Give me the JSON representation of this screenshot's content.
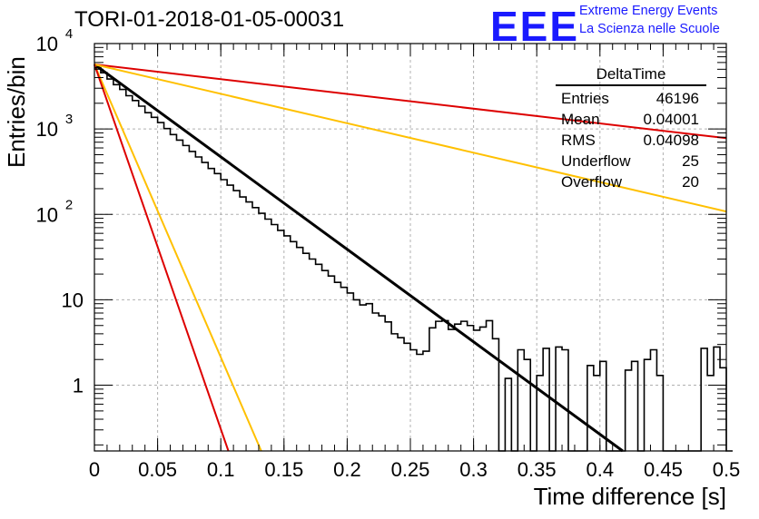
{
  "header": {
    "title": "TORI-01-2018-01-05-00031",
    "logo_text": "EEE",
    "logo_line1": "Extreme Energy Events",
    "logo_line2": "La Scienza nelle Scuole"
  },
  "stats_box": {
    "name": "DeltaTime",
    "rows": [
      {
        "label": "Entries",
        "value": "46196"
      },
      {
        "label": "Mean",
        "value": "0.04001"
      },
      {
        "label": "RMS",
        "value": "0.04098"
      },
      {
        "label": "Underflow",
        "value": "25"
      },
      {
        "label": "Overflow",
        "value": "20"
      }
    ]
  },
  "colors": {
    "histogram": "#000000",
    "fit": "#000000",
    "red": "#dd0000",
    "orange": "#ffc000",
    "grid": "#b0b0b0"
  },
  "chart_data": {
    "type": "line",
    "xlabel": "Time difference [s]",
    "ylabel": "Entries/bin",
    "xlim": [
      0,
      0.5
    ],
    "ylim": [
      0.17,
      10000
    ],
    "yscale": "log",
    "grid": true,
    "x_ticks": [
      "0",
      "0.05",
      "0.1",
      "0.15",
      "0.2",
      "0.25",
      "0.3",
      "0.35",
      "0.4",
      "0.45",
      "0.5"
    ],
    "y_ticks": [
      {
        "value": 1,
        "label": "1"
      },
      {
        "value": 10,
        "label": "10"
      },
      {
        "value": 100,
        "label": "10",
        "exp": "2"
      },
      {
        "value": 1000,
        "label": "10",
        "exp": "3"
      },
      {
        "value": 10000,
        "label": "10",
        "exp": "4"
      }
    ],
    "series": [
      {
        "kind": "histogram",
        "bin_width": 0.005,
        "values": [
          5200,
          4550,
          3850,
          3300,
          2900,
          2450,
          2150,
          1850,
          1550,
          1370,
          1190,
          1010,
          860,
          740,
          640,
          545,
          470,
          405,
          345,
          300,
          255,
          220,
          190,
          160,
          140,
          120,
          103,
          88,
          76,
          65,
          56,
          48,
          41,
          35,
          30,
          26,
          22,
          19,
          16,
          14,
          12,
          10,
          8.7,
          9,
          7,
          6.5,
          5.5,
          4,
          3.6,
          3.1,
          2.6,
          2.3,
          2.5,
          4.7,
          5.6,
          5.7,
          4.5,
          5.2,
          5.6,
          5,
          4.4,
          4.8,
          5.7,
          3.5,
          0.0,
          1.2,
          0.0,
          2.6,
          2,
          0.0,
          1.3,
          2.7,
          0.0,
          2.8,
          2.6,
          0.0,
          0.0,
          0.0,
          1.7,
          1.3,
          1.9,
          0.0,
          0.0,
          0.0,
          1.5,
          1.9,
          0.0,
          2,
          2.6,
          1.3,
          0.0,
          0.0,
          0.0,
          0.0,
          0.0,
          0.0,
          2.7,
          1.3,
          2.8,
          1.6,
          0.0
        ]
      },
      {
        "kind": "exp_fit",
        "color": "fit",
        "from": [
          0,
          5700
        ],
        "to": [
          0.418,
          0.17
        ]
      },
      {
        "kind": "exp_line",
        "color": "red",
        "from": [
          0,
          5700
        ],
        "to": [
          0.5,
          780
        ]
      },
      {
        "kind": "exp_line",
        "color": "orange",
        "from": [
          0,
          5700
        ],
        "to": [
          0.5,
          108
        ]
      },
      {
        "kind": "exp_line",
        "color": "orange",
        "from": [
          0,
          5700
        ],
        "to": [
          0.132,
          0.17
        ]
      },
      {
        "kind": "exp_line",
        "color": "red",
        "from": [
          0,
          5700
        ],
        "to": [
          0.106,
          0.17
        ]
      }
    ]
  }
}
